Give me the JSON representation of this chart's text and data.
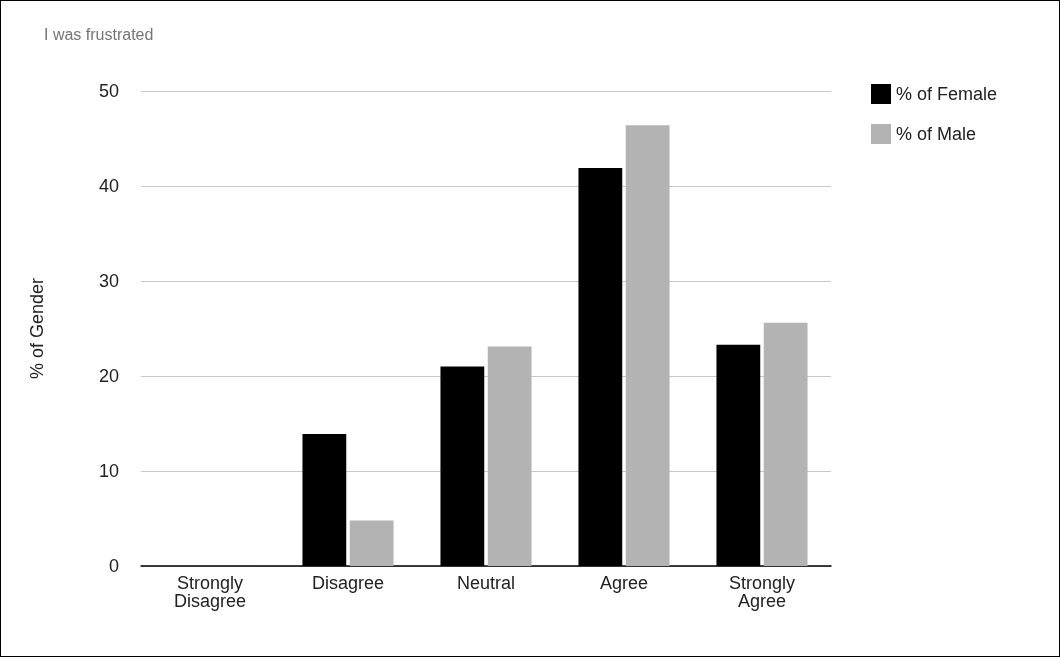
{
  "chart_data": {
    "type": "bar",
    "title": "I was frustrated",
    "ylabel": "% of Gender",
    "categories": [
      "Strongly\nDisagree",
      "Disagree",
      "Neutral",
      "Agree",
      "Strongly\nAgree"
    ],
    "series": [
      {
        "name": "% of Female",
        "color": "#000000",
        "values": [
          0,
          13.9,
          21.0,
          41.9,
          23.3
        ]
      },
      {
        "name": "% of Male",
        "color": "#b3b3b3",
        "values": [
          0,
          4.8,
          23.1,
          46.4,
          25.6
        ]
      }
    ],
    "ylim": [
      0,
      50
    ],
    "yticks": [
      0,
      10,
      20,
      30,
      40,
      50
    ],
    "grid": "y",
    "legend": "top right"
  }
}
